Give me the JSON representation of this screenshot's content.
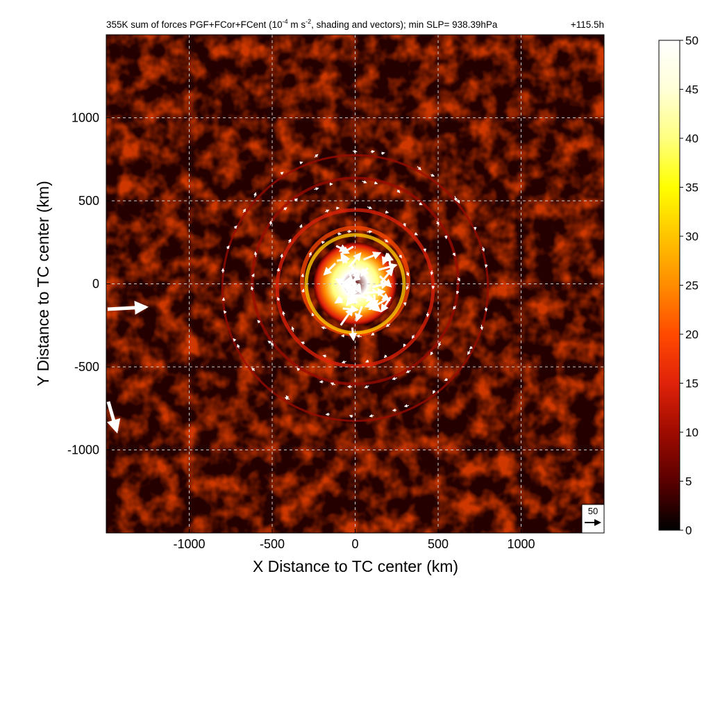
{
  "chart_data": {
    "type": "heatmap",
    "title": "355K sum of forces PGF+FCor+FCent (10",
    "title_sup": "-4",
    "title_mid": " m s",
    "title_sup2": "-2",
    "title_end": ", shading and vectors); min SLP= 938.39hPa",
    "time_label": "+115.5h",
    "xlabel": "X Distance to TC center (km)",
    "ylabel": "Y Distance to TC center (km)",
    "xlim": [
      -1500,
      1500
    ],
    "ylim": [
      -1500,
      1500
    ],
    "xticks": [
      -1000,
      -500,
      0,
      500,
      1000
    ],
    "yticks": [
      -1000,
      -500,
      0,
      500,
      1000
    ],
    "xtick_labels": [
      "-1000",
      "-500",
      "0",
      "500",
      "1000"
    ],
    "ytick_labels": [
      "-1000",
      "-500",
      "0",
      "500",
      "1000"
    ],
    "grid": true,
    "colorbar": {
      "range": [
        0,
        50
      ],
      "ticks": [
        0,
        5,
        10,
        15,
        20,
        25,
        30,
        35,
        40,
        45,
        50
      ],
      "tick_labels": [
        "0",
        "5",
        "10",
        "15",
        "20",
        "25",
        "30",
        "35",
        "40",
        "45",
        "50"
      ],
      "colormap": [
        "#000000",
        "#5a0000",
        "#9e0b00",
        "#e0220a",
        "#ff4a00",
        "#ff8c00",
        "#ffc400",
        "#ffff00",
        "#ffff80",
        "#ffffd8",
        "#ffffff"
      ]
    },
    "reference_vector": {
      "label": "50",
      "magnitude": 50
    },
    "features": {
      "core_max_value": 50,
      "core_radius_km": 250,
      "background_value": 6,
      "ring_radii_km": [
        320,
        470,
        620,
        800
      ],
      "ring_values": [
        22,
        14,
        10,
        8
      ]
    }
  }
}
